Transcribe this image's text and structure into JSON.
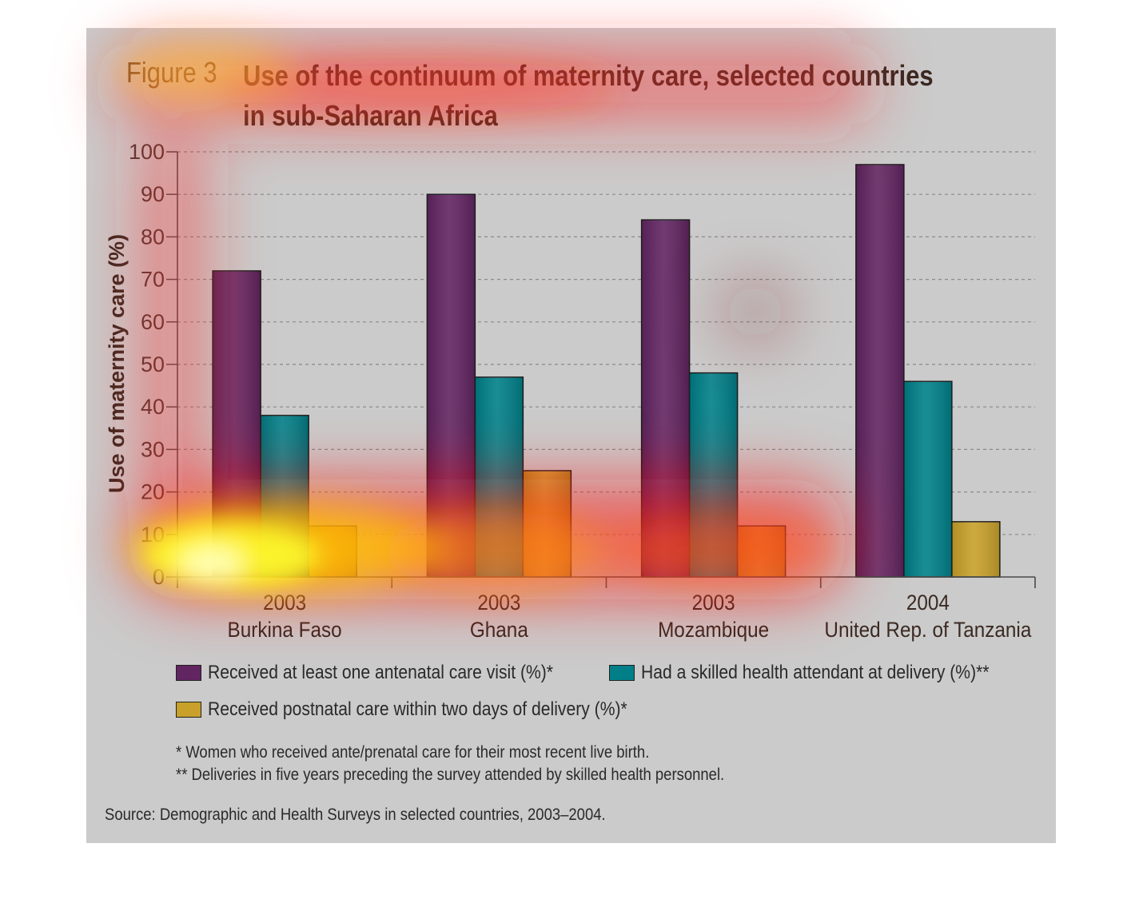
{
  "figure": {
    "label": "Figure 3",
    "title": "Use of the continuum of maternity care, selected countries in sub-Saharan Africa"
  },
  "chart_data": {
    "type": "bar",
    "ylabel": "Use of maternity care (%)",
    "ylim": [
      0,
      100
    ],
    "yticks": [
      0,
      10,
      20,
      30,
      40,
      50,
      60,
      70,
      80,
      90,
      100
    ],
    "grid": true,
    "categories": [
      {
        "year": "2003",
        "country": "Burkina Faso"
      },
      {
        "year": "2003",
        "country": "Ghana"
      },
      {
        "year": "2003",
        "country": "Mozambique"
      },
      {
        "year": "2004",
        "country": "United Rep. of Tanzania"
      }
    ],
    "series": [
      {
        "name": "Received at least one antenatal care visit (%)*",
        "color": "#612561",
        "values": [
          72,
          90,
          84,
          97
        ]
      },
      {
        "name": "Had a skilled health attendant at delivery (%)**",
        "color": "#007f88",
        "values": [
          38,
          47,
          48,
          46
        ]
      },
      {
        "name": "Received postnatal care within two days of delivery (%)*",
        "color": "#c8a02a",
        "values": [
          12,
          25,
          12,
          13
        ]
      }
    ]
  },
  "notes": [
    "* Women who received ante/prenatal care for their most recent live birth.",
    "** Deliveries in five years preceding the survey attended by skilled health personnel."
  ],
  "source": "Source: Demographic and Health Surveys in selected countries, 2003–2004."
}
